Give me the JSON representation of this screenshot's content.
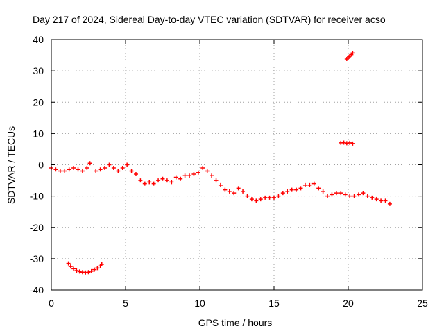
{
  "chart_data": {
    "type": "scatter",
    "title": "Day 217 of 2024, Sidereal Day-to-day VTEC variation (SDTVAR) for receiver acso",
    "xlabel": "GPS time / hours",
    "ylabel": "SDTVAR / TECUs",
    "xlim": [
      0,
      25
    ],
    "ylim": [
      -40,
      40
    ],
    "xticks": [
      0,
      5,
      10,
      15,
      20,
      25
    ],
    "yticks": [
      -40,
      -30,
      -20,
      -10,
      0,
      10,
      20,
      30,
      40
    ],
    "grid": true,
    "marker": "plus",
    "color": "#ff0000",
    "series": [
      {
        "name": "main-track",
        "x": [
          0.0,
          0.3,
          0.6,
          0.9,
          1.2,
          1.5,
          1.8,
          2.1,
          2.4,
          2.6,
          3.0,
          3.3,
          3.6,
          3.9,
          4.2,
          4.5,
          4.8,
          5.1,
          5.4,
          5.7,
          6.0,
          6.3,
          6.6,
          6.9,
          7.2,
          7.5,
          7.8,
          8.1,
          8.4,
          8.7,
          9.0,
          9.3,
          9.6,
          9.9,
          10.2,
          10.5,
          10.8,
          11.1,
          11.4,
          11.7,
          12.0,
          12.3,
          12.6,
          12.9,
          13.2,
          13.5,
          13.8,
          14.1,
          14.4,
          14.7,
          15.0,
          15.3,
          15.6,
          15.9,
          16.2,
          16.5,
          16.8,
          17.1,
          17.4,
          17.7,
          18.0,
          18.3,
          18.6,
          18.9,
          19.2,
          19.5,
          19.8,
          20.1,
          20.4,
          20.7,
          21.0,
          21.3,
          21.6,
          21.9,
          22.2,
          22.5,
          22.8
        ],
        "y": [
          -1.0,
          -1.5,
          -2.0,
          -2.0,
          -1.5,
          -1.0,
          -1.5,
          -2.0,
          -1.0,
          0.5,
          -2.0,
          -1.5,
          -1.0,
          0.0,
          -1.0,
          -2.0,
          -1.0,
          0.0,
          -2.0,
          -3.0,
          -5.0,
          -6.0,
          -5.5,
          -6.0,
          -5.0,
          -4.5,
          -5.0,
          -5.5,
          -4.0,
          -4.5,
          -3.5,
          -3.5,
          -3.0,
          -2.5,
          -1.0,
          -2.0,
          -3.5,
          -5.0,
          -6.5,
          -8.0,
          -8.5,
          -9.0,
          -7.5,
          -8.5,
          -10.0,
          -11.0,
          -11.5,
          -11.0,
          -10.5,
          -10.5,
          -10.5,
          -10.0,
          -9.0,
          -8.5,
          -8.0,
          -8.0,
          -7.5,
          -6.5,
          -6.5,
          -6.0,
          -7.5,
          -8.5,
          -10.0,
          -9.5,
          -9.0,
          -9.0,
          -9.5,
          -10.0,
          -10.0,
          -9.5,
          -9.0,
          -10.0,
          -10.5,
          -11.0,
          -11.5,
          -11.5,
          -12.5
        ]
      },
      {
        "name": "lower-arc",
        "x": [
          1.15,
          1.3,
          1.5,
          1.7,
          1.9,
          2.1,
          2.3,
          2.5,
          2.7,
          2.9,
          3.1,
          3.3,
          3.4
        ],
        "y": [
          -31.5,
          -32.5,
          -33.2,
          -33.8,
          -34.1,
          -34.3,
          -34.4,
          -34.3,
          -34.0,
          -33.5,
          -33.0,
          -32.3,
          -31.8
        ]
      },
      {
        "name": "mid-cluster",
        "x": [
          19.5,
          19.7,
          19.9,
          20.1,
          20.3
        ],
        "y": [
          7.0,
          7.1,
          6.9,
          7.0,
          6.8
        ]
      },
      {
        "name": "upper-segment",
        "x": [
          19.9,
          20.05,
          20.2,
          20.3
        ],
        "y": [
          33.8,
          34.5,
          35.2,
          35.7
        ]
      }
    ]
  }
}
